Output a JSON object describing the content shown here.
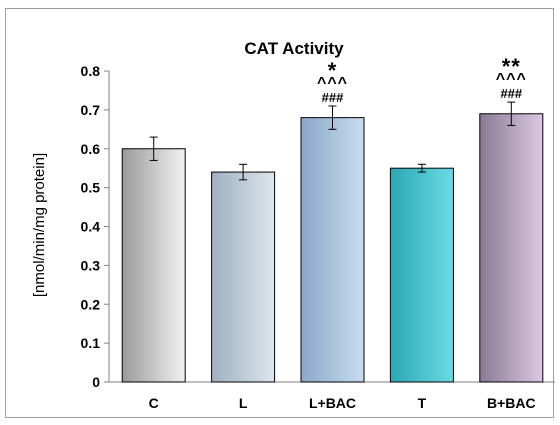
{
  "chart_data": {
    "type": "bar",
    "title": "CAT Activity",
    "xlabel": "",
    "ylabel": "[nmol/min/mg protein]",
    "ylim": [
      0,
      0.8
    ],
    "yticks": [
      "0",
      "0.1",
      "0.2",
      "0.3",
      "0.4",
      "0.5",
      "0.6",
      "0.7",
      "0.8"
    ],
    "categories": [
      "C",
      "L",
      "L+BAC",
      "T",
      "B+BAC"
    ],
    "values": [
      0.6,
      0.54,
      0.68,
      0.55,
      0.69
    ],
    "errors": [
      0.03,
      0.02,
      0.03,
      0.01,
      0.03
    ],
    "annotations": [
      [],
      [],
      [
        "*",
        "^^^",
        "###"
      ],
      [],
      [
        "**",
        "^^^",
        "###"
      ]
    ],
    "bar_colors": [
      [
        "#9a9a9a",
        "#f2f2f2"
      ],
      [
        "#9fb0c0",
        "#dce6ee"
      ],
      [
        "#8aa8c8",
        "#c8ddf0"
      ],
      [
        "#2aa8b4",
        "#6adbe6"
      ],
      [
        "#8a7a96",
        "#dcc8e2"
      ]
    ],
    "grid": false,
    "legend": "none"
  }
}
